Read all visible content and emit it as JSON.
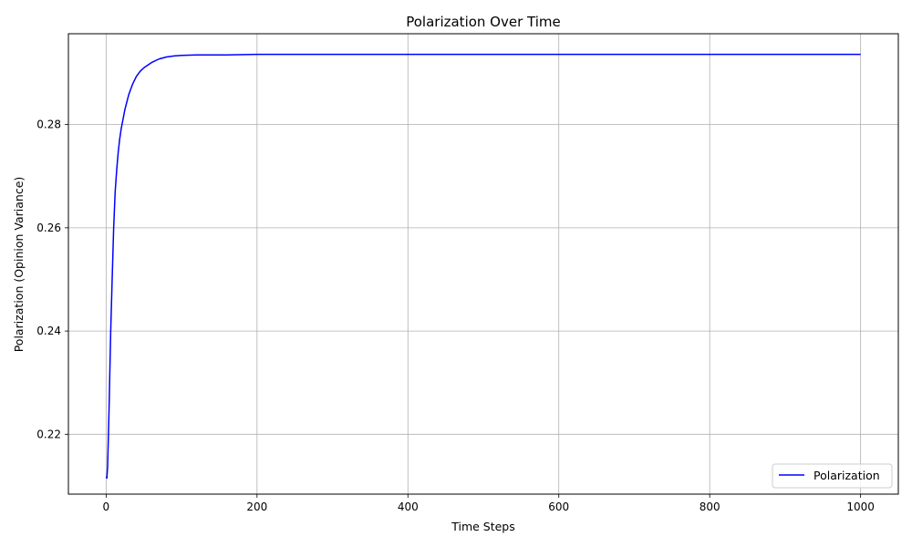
{
  "chart_data": {
    "type": "line",
    "title": "Polarization Over Time",
    "xlabel": "Time Steps",
    "ylabel": "Polarization (Opinion Variance)",
    "xlim": [
      -50,
      1050
    ],
    "ylim": [
      0.2084,
      0.2976
    ],
    "xticks": [
      0,
      200,
      400,
      600,
      800,
      1000
    ],
    "xtick_labels": [
      "0",
      "200",
      "400",
      "600",
      "800",
      "1000"
    ],
    "yticks": [
      0.22,
      0.24,
      0.26,
      0.28
    ],
    "ytick_labels": [
      "0.22",
      "0.24",
      "0.26",
      "0.28"
    ],
    "grid": true,
    "legend_position": "lower right",
    "series": [
      {
        "name": "Polarization",
        "color": "#0000ff",
        "x": [
          0,
          1,
          2,
          4,
          6,
          8,
          10,
          12,
          14,
          16,
          18,
          20,
          25,
          30,
          35,
          40,
          45,
          50,
          60,
          70,
          80,
          90,
          100,
          120,
          140,
          160,
          200,
          300,
          400,
          500,
          600,
          700,
          800,
          900,
          1000
        ],
        "y": [
          0.2118,
          0.2115,
          0.2138,
          0.2255,
          0.2395,
          0.25,
          0.26,
          0.267,
          0.2712,
          0.2746,
          0.2772,
          0.2792,
          0.283,
          0.2858,
          0.2878,
          0.2893,
          0.2903,
          0.291,
          0.292,
          0.2927,
          0.2931,
          0.2933,
          0.2934,
          0.2935,
          0.2935,
          0.2935,
          0.2936,
          0.2936,
          0.2936,
          0.2936,
          0.2936,
          0.2936,
          0.2936,
          0.2936,
          0.2936
        ]
      }
    ]
  }
}
